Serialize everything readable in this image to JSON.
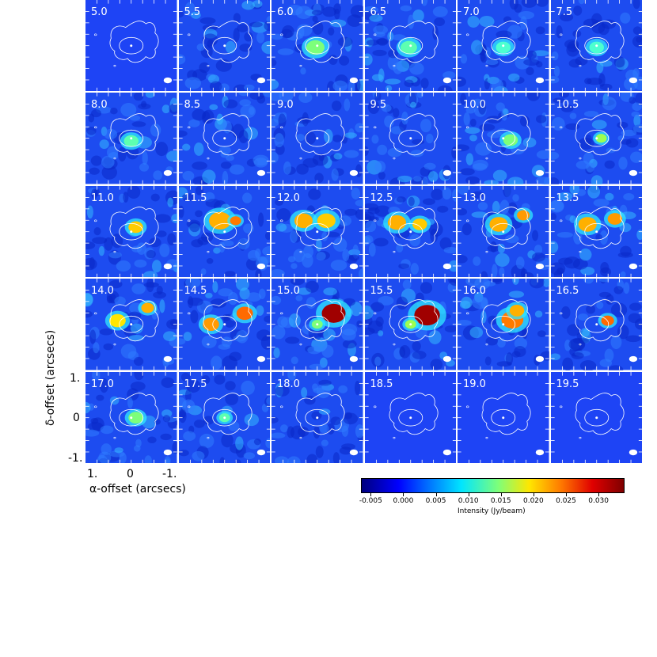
{
  "panels": [
    "5.0",
    "5.5",
    "6.0",
    "6.5",
    "7.0",
    "7.5",
    "8.0",
    "8.5",
    "9.0",
    "9.5",
    "10.0",
    "10.5",
    "11.0",
    "11.5",
    "12.0",
    "12.5",
    "13.0",
    "13.5",
    "14.0",
    "14.5",
    "15.0",
    "15.5",
    "16.0",
    "16.5",
    "17.0",
    "17.5",
    "18.0",
    "18.5",
    "19.0",
    "19.5"
  ],
  "axes": {
    "ylabel": "δ-offset (arcsecs)",
    "xlabel": "α-offset (arcsecs)",
    "yticks": [
      "1.",
      "0",
      "-1."
    ],
    "xticks": [
      "1.",
      "0",
      "-1."
    ]
  },
  "colorbar": {
    "label": "Intensity (Jy/beam)",
    "ticks": [
      "-0.005",
      "0.000",
      "0.005",
      "0.010",
      "0.015",
      "0.020",
      "0.025",
      "0.030"
    ],
    "range": [
      -0.0065,
      0.034
    ]
  },
  "colors": {
    "background_blue": "#1d4cf0",
    "contour": "#ffffff"
  }
}
